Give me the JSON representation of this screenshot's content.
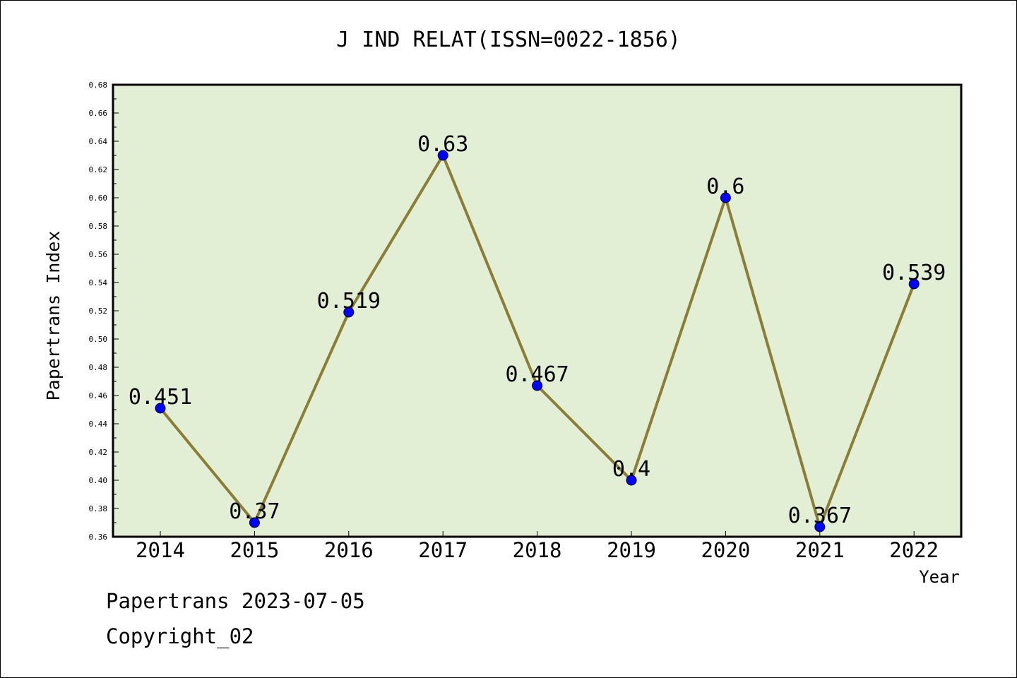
{
  "chart_data": {
    "type": "line",
    "title": "J IND RELAT(ISSN=0022-1856)",
    "xlabel": "Year",
    "ylabel": "Papertrans Index",
    "categories": [
      "2014",
      "2015",
      "2016",
      "2017",
      "2018",
      "2019",
      "2020",
      "2021",
      "2022"
    ],
    "values": [
      0.451,
      0.37,
      0.519,
      0.63,
      0.467,
      0.4,
      0.6,
      0.367,
      0.539
    ],
    "data_labels": [
      "0.451",
      "0.37",
      "0.519",
      "0.63",
      "0.467",
      "0.4",
      "0.6",
      "0.367",
      "0.539"
    ],
    "ylim": [
      0.36,
      0.68
    ],
    "yticks": [
      "0.36",
      "0.38",
      "0.40",
      "0.42",
      "0.44",
      "0.46",
      "0.48",
      "0.50",
      "0.52",
      "0.54",
      "0.56",
      "0.58",
      "0.60",
      "0.62",
      "0.64",
      "0.66",
      "0.68"
    ],
    "grid": false,
    "colors": {
      "plot_background": "#e2efd5",
      "line": "#8b7d35",
      "marker": "#0000ff"
    }
  },
  "footer": {
    "source": "Papertrans 2023-07-05",
    "copyright": "Copyright_02"
  }
}
